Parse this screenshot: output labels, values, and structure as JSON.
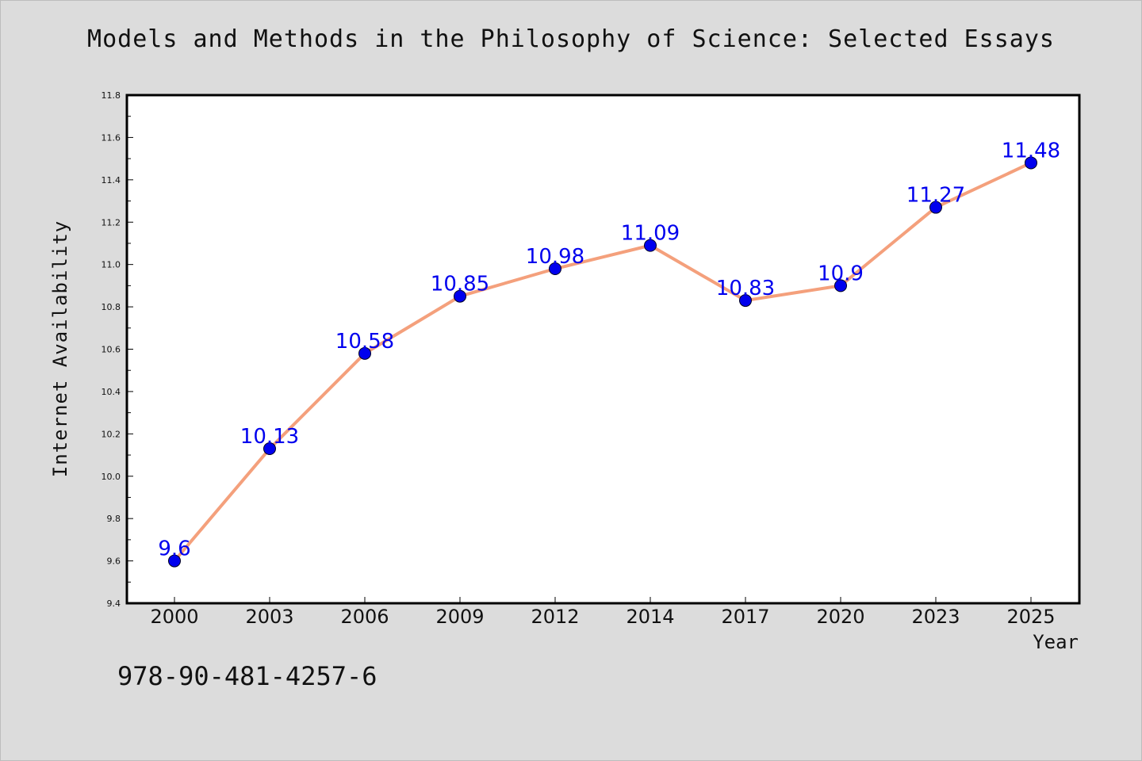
{
  "chart_data": {
    "type": "line",
    "title": "Models and Methods in the Philosophy of Science: Selected Essays",
    "xlabel": "Year",
    "ylabel": "Internet Availability",
    "categories": [
      "2000",
      "2003",
      "2006",
      "2009",
      "2012",
      "2014",
      "2017",
      "2020",
      "2023",
      "2025"
    ],
    "series": [
      {
        "values": [
          9.6,
          10.13,
          10.58,
          10.85,
          10.98,
          11.09,
          10.83,
          10.9,
          11.27,
          11.48
        ],
        "labels": [
          "9.6",
          "10.13",
          "10.58",
          "10.85",
          "10.98",
          "11.09",
          "10.83",
          "10.9",
          "11.27",
          "11.48"
        ]
      }
    ],
    "ylim": [
      9.4,
      11.8
    ],
    "yticks": [
      "9.4",
      "9.6",
      "9.8",
      "10.0",
      "10.2",
      "10.4",
      "10.6",
      "10.8",
      "11.0",
      "11.2",
      "11.4",
      "11.6",
      "11.8"
    ],
    "grid": false,
    "colors": {
      "line": "#f4a07c",
      "marker": "#0000ee",
      "label": "#0000ee",
      "background": "#dcdcdc",
      "plot": "#ffffff"
    }
  },
  "footer": {
    "isbn": "978-90-481-4257-6"
  }
}
